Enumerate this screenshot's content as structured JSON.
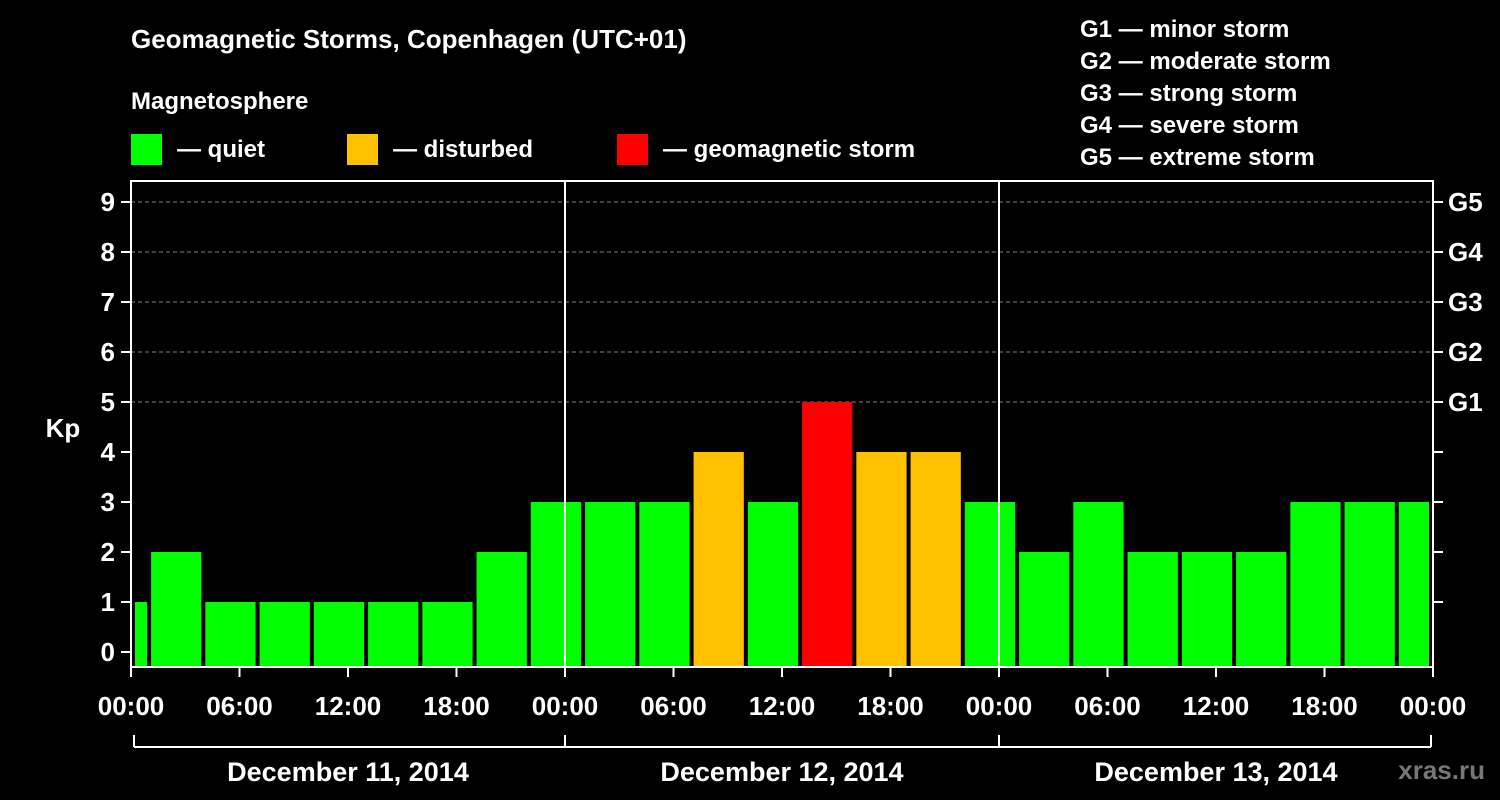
{
  "header": {
    "title": "Geomagnetic Storms, Copenhagen (UTC+01)",
    "section_label": "Magnetosphere"
  },
  "legend": [
    {
      "label": "— quiet",
      "color": "#00ff00"
    },
    {
      "label": "— disturbed",
      "color": "#ffc000"
    },
    {
      "label": "— geomagnetic storm",
      "color": "#ff0000"
    }
  ],
  "g_scale": [
    "G1 — minor storm",
    "G2 — moderate storm",
    "G3 — strong storm",
    "G4 — severe storm",
    "G5 — extreme storm"
  ],
  "watermark": "xras.ru",
  "colors": {
    "background": "#000000",
    "quiet": "#00ff00",
    "disturbed": "#ffc000",
    "storm": "#ff0000",
    "axis": "#ffffff",
    "grid": "#808080"
  },
  "chart_data": {
    "type": "bar",
    "ylabel": "Kp",
    "ylim": [
      0,
      9
    ],
    "yticks": [
      "0",
      "1",
      "2",
      "3",
      "4",
      "5",
      "6",
      "7",
      "8",
      "9"
    ],
    "right_ticks": [
      {
        "kp": 5,
        "label": "G1"
      },
      {
        "kp": 6,
        "label": "G2"
      },
      {
        "kp": 7,
        "label": "G3"
      },
      {
        "kp": 8,
        "label": "G4"
      },
      {
        "kp": 9,
        "label": "G5"
      }
    ],
    "grid_lines_kp": [
      5,
      6,
      7,
      8,
      9
    ],
    "x_unit": "hours since 2014-12-11 00:00 (UTC+01)",
    "x_range_hours": [
      0,
      72
    ],
    "xtick_labels": [
      "00:00",
      "06:00",
      "12:00",
      "18:00",
      "00:00",
      "06:00",
      "12:00",
      "18:00",
      "00:00",
      "06:00",
      "12:00",
      "18:00",
      "00:00"
    ],
    "day_labels": [
      "December 11, 2014",
      "December 12, 2014",
      "December 13, 2014"
    ],
    "bars": [
      {
        "start": "2014-12-11 00:00",
        "end": "2014-12-11 01:00",
        "kp": 1,
        "status": "quiet"
      },
      {
        "start": "2014-12-11 01:00",
        "end": "2014-12-11 04:00",
        "kp": 2,
        "status": "quiet"
      },
      {
        "start": "2014-12-11 04:00",
        "end": "2014-12-11 07:00",
        "kp": 1,
        "status": "quiet"
      },
      {
        "start": "2014-12-11 07:00",
        "end": "2014-12-11 10:00",
        "kp": 1,
        "status": "quiet"
      },
      {
        "start": "2014-12-11 10:00",
        "end": "2014-12-11 13:00",
        "kp": 1,
        "status": "quiet"
      },
      {
        "start": "2014-12-11 13:00",
        "end": "2014-12-11 16:00",
        "kp": 1,
        "status": "quiet"
      },
      {
        "start": "2014-12-11 16:00",
        "end": "2014-12-11 19:00",
        "kp": 1,
        "status": "quiet"
      },
      {
        "start": "2014-12-11 19:00",
        "end": "2014-12-11 22:00",
        "kp": 2,
        "status": "quiet"
      },
      {
        "start": "2014-12-11 22:00",
        "end": "2014-12-12 01:00",
        "kp": 3,
        "status": "quiet"
      },
      {
        "start": "2014-12-12 01:00",
        "end": "2014-12-12 04:00",
        "kp": 3,
        "status": "quiet"
      },
      {
        "start": "2014-12-12 04:00",
        "end": "2014-12-12 07:00",
        "kp": 3,
        "status": "quiet"
      },
      {
        "start": "2014-12-12 07:00",
        "end": "2014-12-12 10:00",
        "kp": 4,
        "status": "disturbed"
      },
      {
        "start": "2014-12-12 10:00",
        "end": "2014-12-12 13:00",
        "kp": 3,
        "status": "quiet"
      },
      {
        "start": "2014-12-12 13:00",
        "end": "2014-12-12 16:00",
        "kp": 5,
        "status": "storm"
      },
      {
        "start": "2014-12-12 16:00",
        "end": "2014-12-12 19:00",
        "kp": 4,
        "status": "disturbed"
      },
      {
        "start": "2014-12-12 19:00",
        "end": "2014-12-12 22:00",
        "kp": 4,
        "status": "disturbed"
      },
      {
        "start": "2014-12-12 22:00",
        "end": "2014-12-13 01:00",
        "kp": 3,
        "status": "quiet"
      },
      {
        "start": "2014-12-13 01:00",
        "end": "2014-12-13 04:00",
        "kp": 2,
        "status": "quiet"
      },
      {
        "start": "2014-12-13 04:00",
        "end": "2014-12-13 07:00",
        "kp": 3,
        "status": "quiet"
      },
      {
        "start": "2014-12-13 07:00",
        "end": "2014-12-13 10:00",
        "kp": 2,
        "status": "quiet"
      },
      {
        "start": "2014-12-13 10:00",
        "end": "2014-12-13 13:00",
        "kp": 2,
        "status": "quiet"
      },
      {
        "start": "2014-12-13 13:00",
        "end": "2014-12-13 16:00",
        "kp": 2,
        "status": "quiet"
      },
      {
        "start": "2014-12-13 16:00",
        "end": "2014-12-13 19:00",
        "kp": 3,
        "status": "quiet"
      },
      {
        "start": "2014-12-13 19:00",
        "end": "2014-12-13 22:00",
        "kp": 3,
        "status": "quiet"
      },
      {
        "start": "2014-12-13 22:00",
        "end": "2014-12-14 00:00",
        "kp": 3,
        "status": "quiet"
      }
    ],
    "grid": true,
    "legend_position": "top"
  }
}
